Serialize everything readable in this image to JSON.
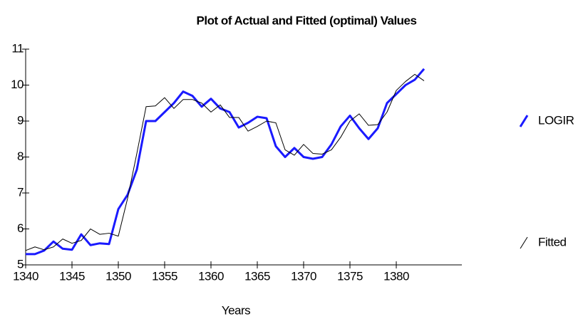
{
  "chart_data": {
    "type": "line",
    "title": "Plot of Actual and Fitted  (optimal) Values",
    "x_label": "Years",
    "x": [
      1340,
      1341,
      1342,
      1343,
      1344,
      1345,
      1346,
      1347,
      1348,
      1349,
      1350,
      1351,
      1352,
      1353,
      1354,
      1355,
      1356,
      1357,
      1358,
      1359,
      1360,
      1361,
      1362,
      1363,
      1364,
      1365,
      1366,
      1367,
      1368,
      1369,
      1370,
      1371,
      1372,
      1373,
      1374,
      1375,
      1376,
      1377,
      1378,
      1379,
      1380,
      1381,
      1382,
      1383
    ],
    "series": [
      {
        "name": "LOGIR",
        "color": "#1a1aff",
        "width": 3,
        "values": [
          5.3,
          5.3,
          5.4,
          5.65,
          5.45,
          5.42,
          5.85,
          5.55,
          5.6,
          5.58,
          6.55,
          6.95,
          7.65,
          9.0,
          9.0,
          9.25,
          9.5,
          9.82,
          9.7,
          9.4,
          9.62,
          9.35,
          9.25,
          8.82,
          8.95,
          9.12,
          9.08,
          8.3,
          8.0,
          8.25,
          8.0,
          7.95,
          8.0,
          8.35,
          8.85,
          9.15,
          8.8,
          8.5,
          8.8,
          9.5,
          9.75,
          10.0,
          10.15,
          10.45
        ]
      },
      {
        "name": "Fitted",
        "color": "#000000",
        "width": 1,
        "values": [
          5.4,
          5.5,
          5.42,
          5.5,
          5.72,
          5.6,
          5.68,
          6.0,
          5.85,
          5.88,
          5.8,
          6.85,
          8.1,
          9.4,
          9.42,
          9.65,
          9.35,
          9.6,
          9.6,
          9.5,
          9.25,
          9.45,
          9.1,
          9.1,
          8.72,
          8.85,
          9.0,
          8.95,
          8.2,
          8.05,
          8.35,
          8.1,
          8.08,
          8.2,
          8.55,
          9.0,
          9.2,
          8.88,
          8.9,
          9.25,
          9.85,
          10.1,
          10.3,
          10.12
        ]
      }
    ],
    "xlim": [
      1340,
      1384
    ],
    "xticks": [
      1340,
      1345,
      1350,
      1355,
      1360,
      1365,
      1370,
      1375,
      1380
    ],
    "ylim": [
      5,
      11
    ],
    "yticks": [
      5,
      6,
      7,
      8,
      9,
      10,
      11
    ],
    "grid": false
  }
}
